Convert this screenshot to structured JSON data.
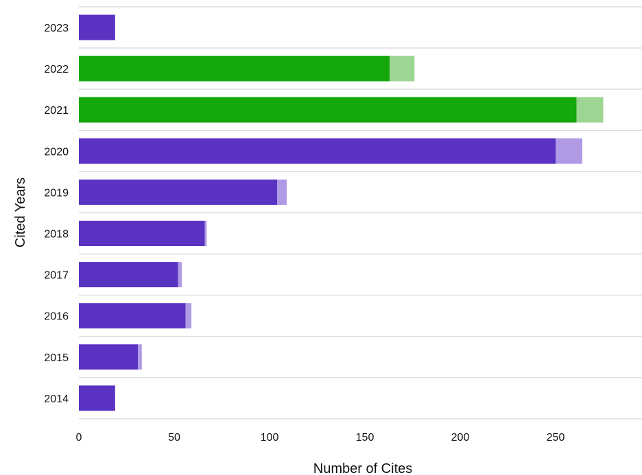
{
  "chart_data": {
    "type": "bar",
    "orientation": "horizontal",
    "stacked": true,
    "xlabel": "Number of Cites",
    "ylabel": "Cited Years",
    "xlim": [
      0,
      295
    ],
    "xticks": [
      0,
      50,
      100,
      150,
      200,
      250
    ],
    "grid": "horizontal separators between categories",
    "categories": [
      "2023",
      "2022",
      "2021",
      "2020",
      "2019",
      "2018",
      "2017",
      "2016",
      "2015",
      "2014"
    ],
    "series": [
      {
        "values": [
          19,
          163,
          261,
          250,
          104,
          66,
          52,
          56,
          31,
          19
        ],
        "colors": [
          "#5b33c2",
          "#14a80a",
          "#14a80a",
          "#5b33c2",
          "#5b33c2",
          "#5b33c2",
          "#5b33c2",
          "#5b33c2",
          "#5b33c2",
          "#5b33c2"
        ]
      },
      {
        "values": [
          0,
          13,
          14,
          14,
          5,
          1,
          2,
          3,
          2,
          0
        ],
        "colors": [
          "#b09ae6",
          "#9dd693",
          "#9dd693",
          "#b09ae6",
          "#b09ae6",
          "#b09ae6",
          "#b09ae6",
          "#b09ae6",
          "#b09ae6",
          "#b09ae6"
        ]
      }
    ]
  }
}
